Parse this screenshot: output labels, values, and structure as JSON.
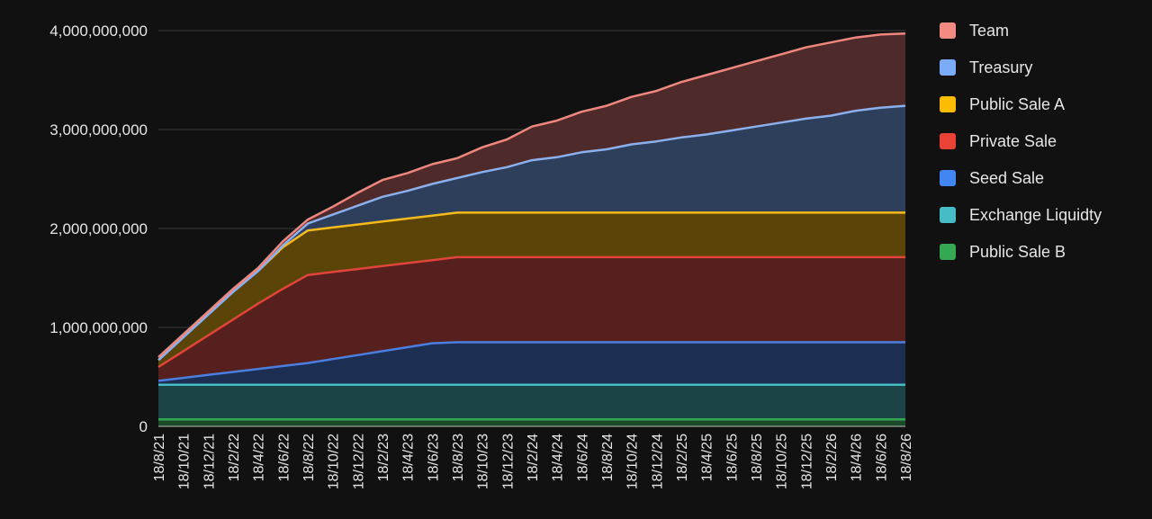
{
  "chart_data": {
    "type": "area",
    "stacked": true,
    "title": "",
    "xlabel": "",
    "ylabel": "",
    "ylim": [
      0,
      4000000000
    ],
    "y_ticks": [
      0,
      1000000000,
      2000000000,
      3000000000,
      4000000000
    ],
    "y_tick_labels": [
      "0",
      "1,000,000,000",
      "2,000,000,000",
      "3,000,000,000",
      "4,000,000,000"
    ],
    "grid": true,
    "legend_position": "right",
    "background": "#111111",
    "x_tick_labels": [
      "18/8/21",
      "18/10/21",
      "18/12/21",
      "18/2/22",
      "18/4/22",
      "18/6/22",
      "18/8/22",
      "18/10/22",
      "18/12/22",
      "18/2/23",
      "18/4/23",
      "18/6/23",
      "18/8/23",
      "18/10/23",
      "18/12/23",
      "18/2/24",
      "18/4/24",
      "18/6/24",
      "18/8/24",
      "18/10/24",
      "18/12/24",
      "18/2/25",
      "18/4/25",
      "18/6/25",
      "18/8/25",
      "18/10/25",
      "18/12/25",
      "18/2/26",
      "18/4/26",
      "18/6/26",
      "18/8/26"
    ],
    "x": [
      "2021-08-18",
      "2021-10-18",
      "2021-12-18",
      "2022-02-18",
      "2022-04-18",
      "2022-06-18",
      "2022-08-18",
      "2022-10-18",
      "2022-12-18",
      "2023-02-18",
      "2023-04-18",
      "2023-06-18",
      "2023-08-18",
      "2023-10-18",
      "2023-12-18",
      "2024-02-18",
      "2024-04-18",
      "2024-06-18",
      "2024-08-18",
      "2024-10-18",
      "2024-12-18",
      "2025-02-18",
      "2025-04-18",
      "2025-06-18",
      "2025-08-18",
      "2025-10-18",
      "2025-12-18",
      "2026-02-18",
      "2026-04-18",
      "2026-06-18",
      "2026-08-18"
    ],
    "series": [
      {
        "name": "Public Sale B",
        "color": "#34a853",
        "line": "#34a853",
        "fill": "#1b4a2a",
        "values": [
          70000000,
          70000000,
          70000000,
          70000000,
          70000000,
          70000000,
          70000000,
          70000000,
          70000000,
          70000000,
          70000000,
          70000000,
          70000000,
          70000000,
          70000000,
          70000000,
          70000000,
          70000000,
          70000000,
          70000000,
          70000000,
          70000000,
          70000000,
          70000000,
          70000000,
          70000000,
          70000000,
          70000000,
          70000000,
          70000000,
          70000000
        ]
      },
      {
        "name": "Exchange Liquidty",
        "color": "#46bdc6",
        "line": "#46bdc6",
        "fill": "#1c4446",
        "values": [
          350000000,
          350000000,
          350000000,
          350000000,
          350000000,
          350000000,
          350000000,
          350000000,
          350000000,
          350000000,
          350000000,
          350000000,
          350000000,
          350000000,
          350000000,
          350000000,
          350000000,
          350000000,
          350000000,
          350000000,
          350000000,
          350000000,
          350000000,
          350000000,
          350000000,
          350000000,
          350000000,
          350000000,
          350000000,
          350000000,
          350000000
        ]
      },
      {
        "name": "Seed Sale",
        "color": "#4285f4",
        "line": "#4a7fe0",
        "fill": "#1c2e52",
        "values": [
          40000000,
          70000000,
          100000000,
          130000000,
          160000000,
          190000000,
          220000000,
          260000000,
          300000000,
          340000000,
          380000000,
          420000000,
          430000000,
          430000000,
          430000000,
          430000000,
          430000000,
          430000000,
          430000000,
          430000000,
          430000000,
          430000000,
          430000000,
          430000000,
          430000000,
          430000000,
          430000000,
          430000000,
          430000000,
          430000000,
          430000000
        ]
      },
      {
        "name": "Private Sale",
        "color": "#ea4335",
        "line": "#e0443a",
        "fill": "#56201e",
        "values": [
          140000000,
          270000000,
          400000000,
          530000000,
          660000000,
          780000000,
          890000000,
          880000000,
          870000000,
          860000000,
          850000000,
          840000000,
          860000000,
          860000000,
          860000000,
          860000000,
          860000000,
          860000000,
          860000000,
          860000000,
          860000000,
          860000000,
          860000000,
          860000000,
          860000000,
          860000000,
          860000000,
          860000000,
          860000000,
          860000000,
          860000000
        ]
      },
      {
        "name": "Public Sale A",
        "color": "#fbbc04",
        "line": "#f5bb1a",
        "fill": "#5a4408",
        "values": [
          70000000,
          140000000,
          210000000,
          280000000,
          330000000,
          420000000,
          450000000,
          450000000,
          450000000,
          450000000,
          450000000,
          450000000,
          450000000,
          450000000,
          450000000,
          450000000,
          450000000,
          450000000,
          450000000,
          450000000,
          450000000,
          450000000,
          450000000,
          450000000,
          450000000,
          450000000,
          450000000,
          450000000,
          450000000,
          450000000,
          450000000
        ]
      },
      {
        "name": "Treasury",
        "color": "#7baaf7",
        "line": "#8ab0ee",
        "fill": "#2e3f5c",
        "values": [
          0,
          0,
          0,
          0,
          0,
          20000000,
          70000000,
          130000000,
          190000000,
          250000000,
          280000000,
          320000000,
          350000000,
          410000000,
          460000000,
          530000000,
          560000000,
          610000000,
          640000000,
          690000000,
          720000000,
          760000000,
          790000000,
          830000000,
          870000000,
          910000000,
          950000000,
          980000000,
          1030000000,
          1060000000,
          1080000000
        ]
      },
      {
        "name": "Team",
        "color": "#f28b82",
        "line": "#f0877f",
        "fill": "#4e2a2a",
        "values": [
          30000000,
          30000000,
          30000000,
          30000000,
          30000000,
          40000000,
          40000000,
          80000000,
          130000000,
          170000000,
          180000000,
          200000000,
          200000000,
          250000000,
          280000000,
          340000000,
          370000000,
          410000000,
          440000000,
          480000000,
          510000000,
          560000000,
          600000000,
          630000000,
          660000000,
          690000000,
          720000000,
          740000000,
          740000000,
          740000000,
          730000000
        ]
      }
    ]
  }
}
